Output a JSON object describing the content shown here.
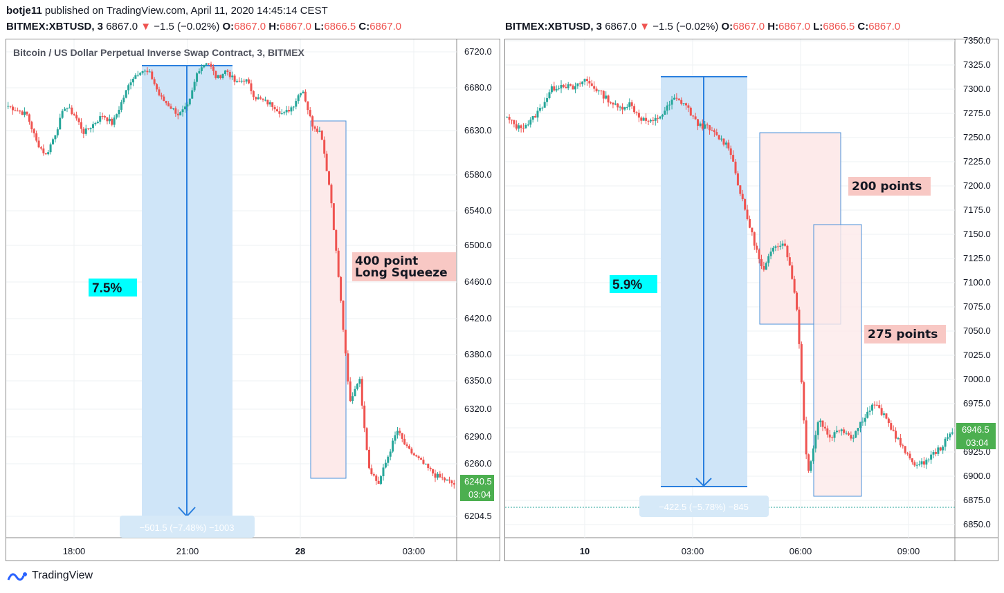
{
  "header": {
    "user": "botje11",
    "published": "published on TradingView.com, April 11, 2020 14:45:14 CEST"
  },
  "panels": [
    {
      "symbol": "BITMEX:XBTUSD, 3",
      "last": "6867.0",
      "change": "−1.5 (−0.02%)",
      "o": "6867.0",
      "h": "6867.0",
      "l": "6866.5",
      "c": "6867.0",
      "chart_title": "Bitcoin / US Dollar Perpetual Inverse Swap Contract, 3, BITMEX",
      "price_labels": [
        "6720.0",
        "6680.0",
        "6630.0",
        "6580.0",
        "6540.0",
        "6500.0",
        "6460.0",
        "6420.0",
        "6380.0",
        "6350.0",
        "6320.0",
        "6290.0",
        "6260.0",
        "6204.5"
      ],
      "time_labels": [
        "18:00",
        "21:00",
        "28",
        "03:00"
      ],
      "current_price": "6240.5",
      "countdown": "03:04",
      "measure_label": "−501.5 (−7.48%) −1003",
      "pct_label": "7.5%",
      "annotation": [
        "400 point",
        "Long Squeeze"
      ]
    },
    {
      "symbol": "BITMEX:XBTUSD, 3",
      "last": "6867.0",
      "change": "−1.5 (−0.02%)",
      "o": "6867.0",
      "h": "6867.0",
      "l": "6866.5",
      "c": "6867.0",
      "price_labels": [
        "7350.0",
        "7325.0",
        "7300.0",
        "7275.0",
        "7250.0",
        "7225.0",
        "7200.0",
        "7175.0",
        "7150.0",
        "7125.0",
        "7100.0",
        "7075.0",
        "7050.0",
        "7025.0",
        "7000.0",
        "6975.0",
        "6950.0",
        "6925.0",
        "6900.0",
        "6875.0",
        "6850.0"
      ],
      "time_labels": [
        "10",
        "03:00",
        "06:00",
        "09:00"
      ],
      "current_price": "6946.5",
      "countdown": "03:04",
      "measure_label": "−422.5 (−5.78%) −845",
      "pct_label": "5.9%",
      "annotation_1": "200 points",
      "annotation_2": "275 points"
    }
  ],
  "brand": "TradingView",
  "colors": {
    "up": "#26a69a",
    "down": "#ef5350",
    "measure": "#2962ff",
    "pct_bg": "#00ffff",
    "note_bg": "#f8c8c4",
    "price_tag": "#4caf50"
  },
  "chart_data": [
    {
      "type": "candlestick",
      "title": "Bitcoin / US Dollar Perpetual Inverse Swap Contract, 3, BITMEX",
      "x_ticks": [
        "18:00",
        "21:00",
        "28",
        "03:00"
      ],
      "y_ticks": [
        6720,
        6680,
        6630,
        6580,
        6540,
        6500,
        6460,
        6420,
        6380,
        6350,
        6320,
        6290,
        6260,
        6204.5
      ],
      "close_path": [
        6660,
        6655,
        6650,
        6620,
        6605,
        6630,
        6660,
        6650,
        6630,
        6640,
        6650,
        6640,
        6665,
        6690,
        6700,
        6695,
        6670,
        6660,
        6650,
        6660,
        6700,
        6710,
        6690,
        6700,
        6685,
        6690,
        6670,
        6665,
        6660,
        6650,
        6660,
        6680,
        6640,
        6630,
        6560,
        6450,
        6330,
        6360,
        6260,
        6240,
        6270,
        6300,
        6280,
        6270,
        6260,
        6250,
        6245,
        6240
      ],
      "measure": {
        "label": "−501.5 (−7.48%) −1003",
        "pct": "7.5%"
      },
      "annotation": "400 point Long Squeeze",
      "last_price": 6240.5
    },
    {
      "type": "candlestick",
      "x_ticks": [
        "10",
        "03:00",
        "06:00",
        "09:00"
      ],
      "y_ticks": [
        7350,
        7325,
        7300,
        7275,
        7250,
        7225,
        7200,
        7175,
        7150,
        7125,
        7100,
        7075,
        7050,
        7025,
        7000,
        6975,
        6950,
        6925,
        6900,
        6875,
        6850
      ],
      "close_path": [
        7270,
        7260,
        7265,
        7280,
        7300,
        7305,
        7300,
        7310,
        7300,
        7290,
        7280,
        7285,
        7270,
        7265,
        7275,
        7290,
        7285,
        7265,
        7260,
        7250,
        7240,
        7190,
        7150,
        7110,
        7140,
        7140,
        7080,
        6900,
        6960,
        6940,
        6950,
        6940,
        6960,
        6975,
        6960,
        6940,
        6920,
        6910,
        6920,
        6930,
        6946
      ],
      "measure": {
        "label": "−422.5 (−5.78%) −845",
        "pct": "5.9%"
      },
      "annotations": [
        "200 points",
        "275 points"
      ],
      "last_price": 6946.5
    }
  ]
}
